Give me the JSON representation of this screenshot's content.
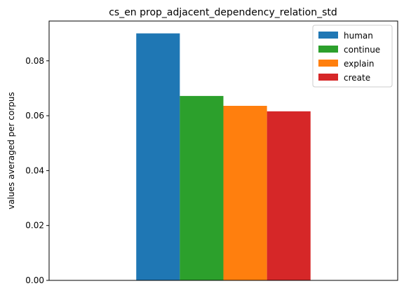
{
  "chart_data": {
    "type": "bar",
    "title": "cs_en prop_adjacent_dependency_relation_std",
    "xlabel": "",
    "ylabel": "values averaged per corpus",
    "categories": [
      ""
    ],
    "series": [
      {
        "name": "human",
        "values": [
          0.09
        ],
        "color": "#1f77b4"
      },
      {
        "name": "continue",
        "values": [
          0.0672
        ],
        "color": "#2ca02c"
      },
      {
        "name": "explain",
        "values": [
          0.0636
        ],
        "color": "#ff7f0e"
      },
      {
        "name": "create",
        "values": [
          0.0616
        ],
        "color": "#d62728"
      }
    ],
    "ylim": [
      0,
      0.0945
    ],
    "yticks": [
      0.0,
      0.02,
      0.04,
      0.06,
      0.08
    ],
    "ytick_labels": [
      "0.00",
      "0.02",
      "0.04",
      "0.06",
      "0.08"
    ],
    "legend_position": "top-right",
    "grid": false
  }
}
